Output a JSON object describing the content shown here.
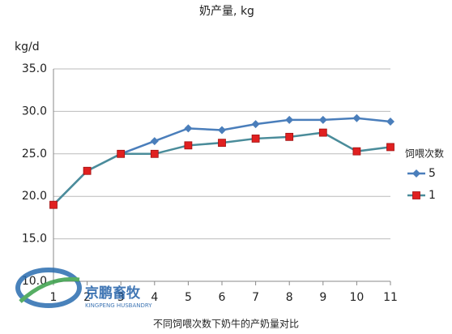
{
  "chart_data": {
    "type": "line",
    "title": "奶产量, kg",
    "y_label": "kg/d",
    "categories": [
      "1",
      "2",
      "3",
      "4",
      "5",
      "6",
      "7",
      "8",
      "9",
      "10",
      "11"
    ],
    "series": [
      {
        "name": "5",
        "color": "#4a7ebb",
        "marker_color": "#4a7ebb",
        "marker": "diamond",
        "values": [
          19,
          23,
          25,
          26.5,
          28,
          27.8,
          28.5,
          29,
          29,
          29.2,
          28.8
        ]
      },
      {
        "name": "1",
        "color": "#4a8c9a",
        "marker_color": "#e02020",
        "marker": "square",
        "values": [
          19,
          23,
          25,
          25,
          26,
          26.3,
          26.8,
          27,
          27.5,
          25.3,
          25.8
        ]
      }
    ],
    "ylim": [
      10,
      35
    ],
    "yticks": [
      {
        "value": 10,
        "label": "10.0"
      },
      {
        "value": 15,
        "label": "15.0"
      },
      {
        "value": 20,
        "label": "20.0"
      },
      {
        "value": 25,
        "label": "25.0"
      },
      {
        "value": 30,
        "label": "30.0"
      },
      {
        "value": 35,
        "label": "35.0"
      }
    ],
    "grid": true,
    "legend_title": "饲喂次数",
    "legend_position": "right",
    "caption": "不同饲喂次数下奶牛的产奶量对比",
    "watermark": [
      "京鹏畜牧",
      "KINGPENG HUSBANDRY"
    ]
  }
}
